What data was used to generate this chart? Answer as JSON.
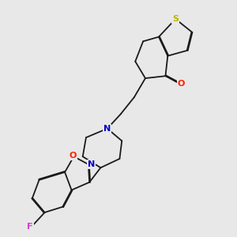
{
  "bg_color": "#e8e8e8",
  "bond_color": "#1a1a1a",
  "S_color": "#b8b800",
  "N_color": "#0000cc",
  "O_color": "#ff2200",
  "F_color": "#cc44cc",
  "label_S": "S",
  "label_N": "N",
  "label_O": "O",
  "label_F": "F",
  "figsize": [
    3.0,
    3.0
  ],
  "dpi": 100
}
